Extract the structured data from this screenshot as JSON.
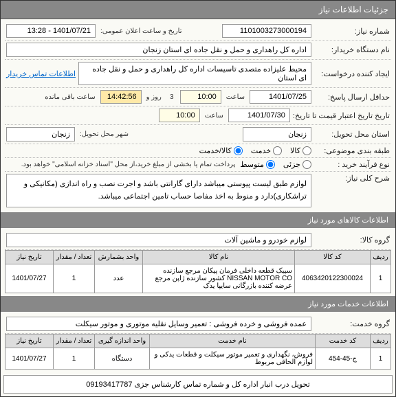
{
  "header": {
    "title": "جزئیات اطلاعات نیاز"
  },
  "fields": {
    "need_no_label": "شماره نیاز:",
    "need_no": "1101003273000194",
    "announce_label": "تاریخ و ساعت اعلان عمومی:",
    "announce": "1401/07/21 - 13:28",
    "buyer_label": "نام دستگاه خریدار:",
    "buyer": "اداره کل راهداری و حمل و نقل جاده ای استان زنجان",
    "creator_label": "ایجاد کننده درخواست:",
    "creator": "محیط علیزاده متصدی تاسیسات اداره کل راهداری و حمل و نقل جاده ای استان",
    "contact_link": "اطلاعات تماس خریدار",
    "reply_deadline_label": "حداقل ارسال پاسخ:",
    "reply_deadline_date": "1401/07/25",
    "reply_deadline_time": "10:00",
    "saat": "ساعت",
    "rooz": "روز و",
    "remain": "14:42:56",
    "remain_suffix": "ساعت باقی مانده",
    "valid_label": "تاریخ تاریخ اعتبار قیمت تا تاریخ:",
    "valid_date": "1401/07/30",
    "valid_time": "10:00",
    "delivery_province_label": "استان محل تحویل:",
    "delivery_province": "زنجان",
    "delivery_city_label": "شهر محل تحویل:",
    "delivery_city": "زنجان",
    "category_label": "طبقه بندی موضوعی:",
    "cat_goods": "کالا",
    "cat_service": "خدمت",
    "cat_both": "کالا/خدمت",
    "buy_type_label": "نوع فرآیند خرید :",
    "buy_type_1": "جزئی",
    "buy_type_2": "متوسط",
    "buy_type_note": "پرداخت تمام یا بخشی از مبلغ خرید،از محل \"اسناد خزانه اسلامی\" خواهد بود.",
    "general_desc_label": "شرح کلی نیاز:",
    "general_desc": "لوازم طبق لیست پیوستی میباشد دارای گارانتی باشد و اجرت نصب و راه اندازی (مکانیکی و تراشکاری)دارد و منوط به اخذ مفاصا حساب تامین اجتماعی میباشد."
  },
  "goods_section": {
    "title": "اطلاعات کالاهای مورد نیاز",
    "group_label": "گروه کالا:",
    "group": "لوازم خودرو و ماشین آلات",
    "cols": {
      "row": "ردیف",
      "code": "کد کالا",
      "name": "نام کالا",
      "unit": "واحد بشمارش",
      "qty": "تعداد / مقدار",
      "date": "تاریخ نیاز"
    },
    "rows": [
      {
        "row": "1",
        "code": "4063420122300024",
        "name": "سیبک قطعه داخلی فرمان پیکان مرجع سازنده NISSAN MOTOR CO کشور سازنده ژاپن مرجع عرضه کننده بازرگانی سایپا یدک",
        "unit": "عدد",
        "qty": "1",
        "date": "1401/07/27"
      }
    ]
  },
  "services_section": {
    "title": "اطلاعات خدمات مورد نیاز",
    "group_label": "گروه خدمت:",
    "group": "عمده فروشی و خرده فروشی : تعمیر وسایل نقلیه موتوری و موتور سیکلت",
    "cols": {
      "row": "ردیف",
      "code": "کد خدمت",
      "name": "نام خدمت",
      "unit": "واحد اندازه گیری",
      "qty": "تعداد / مقدار",
      "date": "تاریخ نیاز"
    },
    "rows": [
      {
        "row": "1",
        "code": "ج-45-454",
        "name": "فروش، نگهداری و تعمیر موتور سیکلت و قطعات یدکی و لوازم الحاقی مربوط",
        "unit": "دستگاه",
        "qty": "1",
        "date": "1401/07/27"
      }
    ]
  },
  "footer_note": "تحویل درب انبار اداره کل  و شماره تماس کارشناس جزی 09193417787"
}
